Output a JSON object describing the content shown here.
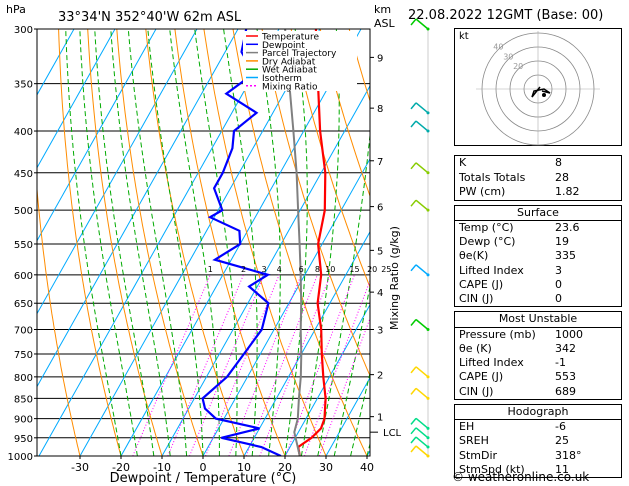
{
  "header": {
    "location": "33°34'N  352°40'W  62m  ASL",
    "datetime": "22.08.2022  12GMT  (Base: 00)",
    "hpa_label": "hPa",
    "km_label": "km",
    "asl_label": "ASL"
  },
  "chart_data": {
    "type": "line",
    "xlabel": "Dewpoint / Temperature (°C)",
    "ylabel_right": "Mixing Ratio (g/kg)",
    "x_ticks": [
      -30,
      -20,
      -10,
      0,
      10,
      20,
      30,
      40
    ],
    "pressure_ticks": [
      300,
      350,
      400,
      450,
      500,
      550,
      600,
      650,
      700,
      750,
      800,
      850,
      900,
      950,
      1000
    ],
    "km_ticks": [
      {
        "km": "1",
        "p": 895
      },
      {
        "km": "2",
        "p": 795
      },
      {
        "km": "3",
        "p": 700
      },
      {
        "km": "4",
        "p": 630
      },
      {
        "km": "5",
        "p": 560
      },
      {
        "km": "6",
        "p": 495
      },
      {
        "km": "7",
        "p": 435
      },
      {
        "km": "8",
        "p": 375
      },
      {
        "km": "9",
        "p": 325
      }
    ],
    "lcl_label": "LCL",
    "lcl_p": 935,
    "mixing_ratio_labels": [
      "1",
      "2",
      "3",
      "4",
      "6",
      "8",
      "10",
      "15",
      "20",
      "25"
    ],
    "mixing_ratio_values": [
      1,
      2,
      3,
      4,
      6,
      8,
      10,
      15,
      20,
      25
    ],
    "legend": [
      {
        "name": "Temperature",
        "color": "#ff0000",
        "dash": "none"
      },
      {
        "name": "Dewpoint",
        "color": "#0000ff",
        "dash": "none"
      },
      {
        "name": "Parcel Trajectory",
        "color": "#808080",
        "dash": "none"
      },
      {
        "name": "Dry Adiabat",
        "color": "#ff8c00",
        "dash": "none"
      },
      {
        "name": "Wet Adiabat",
        "color": "#00aa00",
        "dash": "none"
      },
      {
        "name": "Isotherm",
        "color": "#00aaff",
        "dash": "none"
      },
      {
        "name": "Mixing Ratio",
        "color": "#ff00ff",
        "dash": "2,2"
      }
    ],
    "series": [
      {
        "name": "Temperature",
        "color": "#ff0000",
        "points": [
          [
            1000,
            23.6
          ],
          [
            975,
            22
          ],
          [
            950,
            24
          ],
          [
            925,
            25
          ],
          [
            900,
            24.5
          ],
          [
            850,
            22
          ],
          [
            800,
            18.5
          ],
          [
            750,
            15
          ],
          [
            700,
            11.5
          ],
          [
            650,
            7
          ],
          [
            600,
            4
          ],
          [
            550,
            -1
          ],
          [
            500,
            -4
          ],
          [
            450,
            -9
          ],
          [
            400,
            -16
          ],
          [
            350,
            -23
          ],
          [
            300,
            -31
          ]
        ]
      },
      {
        "name": "Dewpoint",
        "color": "#0000ff",
        "points": [
          [
            1000,
            19
          ],
          [
            975,
            13
          ],
          [
            950,
            2
          ],
          [
            925,
            10
          ],
          [
            900,
            -2
          ],
          [
            875,
            -6
          ],
          [
            850,
            -8
          ],
          [
            800,
            -5
          ],
          [
            750,
            -4
          ],
          [
            700,
            -3
          ],
          [
            650,
            -5
          ],
          [
            620,
            -12
          ],
          [
            600,
            -9
          ],
          [
            575,
            -24
          ],
          [
            550,
            -20
          ],
          [
            530,
            -22
          ],
          [
            510,
            -31
          ],
          [
            500,
            -29
          ],
          [
            470,
            -34
          ],
          [
            450,
            -34
          ],
          [
            420,
            -35
          ],
          [
            400,
            -37
          ],
          [
            380,
            -34
          ],
          [
            360,
            -44
          ],
          [
            340,
            -40
          ],
          [
            320,
            -46
          ],
          [
            300,
            -48
          ]
        ]
      },
      {
        "name": "Parcel Trajectory",
        "color": "#808080",
        "points": [
          [
            1000,
            23.6
          ],
          [
            935,
            19
          ],
          [
            900,
            18
          ],
          [
            850,
            15.5
          ],
          [
            800,
            13
          ],
          [
            750,
            10
          ],
          [
            700,
            6.5
          ],
          [
            650,
            3
          ],
          [
            600,
            -1
          ],
          [
            550,
            -5.5
          ],
          [
            500,
            -10.5
          ],
          [
            450,
            -16
          ],
          [
            400,
            -22.5
          ],
          [
            350,
            -30
          ],
          [
            300,
            -38.5
          ]
        ]
      }
    ],
    "wind_barbs": [
      {
        "p": 1000,
        "color": "#ffd700"
      },
      {
        "p": 975,
        "color": "#00dd88"
      },
      {
        "p": 950,
        "color": "#00dd88"
      },
      {
        "p": 925,
        "color": "#00dd88"
      },
      {
        "p": 850,
        "color": "#ffd700"
      },
      {
        "p": 800,
        "color": "#ffd700"
      },
      {
        "p": 700,
        "color": "#00cc00"
      },
      {
        "p": 600,
        "color": "#00aaff"
      },
      {
        "p": 500,
        "color": "#88cc00"
      },
      {
        "p": 450,
        "color": "#88cc00"
      },
      {
        "p": 400,
        "color": "#00aaaa"
      },
      {
        "p": 380,
        "color": "#00aaaa"
      },
      {
        "p": 300,
        "color": "#00cc00"
      }
    ]
  },
  "hodograph": {
    "unit_label": "kt",
    "ring_labels": [
      "40",
      "30",
      "20"
    ],
    "colors": {
      "frame": "#000000",
      "rings": "#888888",
      "trace": "#000000"
    }
  },
  "indices": [
    {
      "label": "K",
      "value": "8"
    },
    {
      "label": "Totals Totals",
      "value": "28"
    },
    {
      "label": "PW (cm)",
      "value": "1.82"
    }
  ],
  "surface": {
    "title": "Surface",
    "rows": [
      {
        "label": "Temp (°C)",
        "value": "23.6"
      },
      {
        "label": "Dewp (°C)",
        "value": "19"
      },
      {
        "label": "θe(K)",
        "value": "335"
      },
      {
        "label": "Lifted Index",
        "value": "3"
      },
      {
        "label": "CAPE (J)",
        "value": "0"
      },
      {
        "label": "CIN (J)",
        "value": "0"
      }
    ]
  },
  "most_unstable": {
    "title": "Most Unstable",
    "rows": [
      {
        "label": "Pressure (mb)",
        "value": "1000"
      },
      {
        "label": "θe (K)",
        "value": "342"
      },
      {
        "label": "Lifted Index",
        "value": "-1"
      },
      {
        "label": "CAPE (J)",
        "value": "553"
      },
      {
        "label": "CIN (J)",
        "value": "689"
      }
    ]
  },
  "hodograph_table": {
    "title": "Hodograph",
    "rows": [
      {
        "label": "EH",
        "value": "-6"
      },
      {
        "label": "SREH",
        "value": "25"
      },
      {
        "label": "StmDir",
        "value": "318°"
      },
      {
        "label": "StmSpd (kt)",
        "value": "11"
      }
    ]
  },
  "footer": {
    "text": "© weatheronline.co.uk"
  }
}
